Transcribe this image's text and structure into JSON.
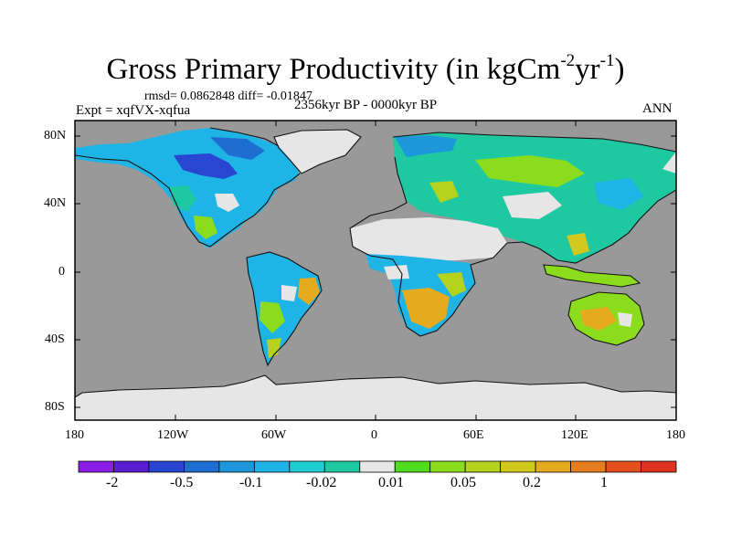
{
  "title": {
    "main": "Gross Primary Productivity (in kgCm",
    "exp1": "-2",
    "mid": "yr",
    "exp2": "-1",
    "close": ")"
  },
  "stats": "rmsd= 0.0862848 diff= -0.01847",
  "experiment": "Expt = xqfVX-xqfua",
  "period": "2356kyr BP - 0000kyr BP",
  "season": "ANN",
  "lat_labels": [
    "80N",
    "40N",
    "0",
    "40S",
    "80S"
  ],
  "lon_labels": [
    "180",
    "120W",
    "60W",
    "0",
    "60E",
    "120E",
    "180"
  ],
  "colorbar": {
    "labels": [
      "-2",
      "-0.5",
      "-0.1",
      "-0.02",
      "0.01",
      "0.05",
      "0.2",
      "1"
    ],
    "colors": [
      "#8a1ee6",
      "#5a1ed2",
      "#2846d2",
      "#1e6ed2",
      "#1e96dc",
      "#1eb4e6",
      "#1ecdd2",
      "#1ec8a0",
      "#e6e6e6",
      "#50dc1e",
      "#8cdc1e",
      "#b4d21e",
      "#d2c81e",
      "#e6aa1e",
      "#e67d1e",
      "#e6501e",
      "#dc321e"
    ]
  },
  "map_colors": {
    "ocean": "#999999",
    "no_change": "#e6e6e6"
  }
}
